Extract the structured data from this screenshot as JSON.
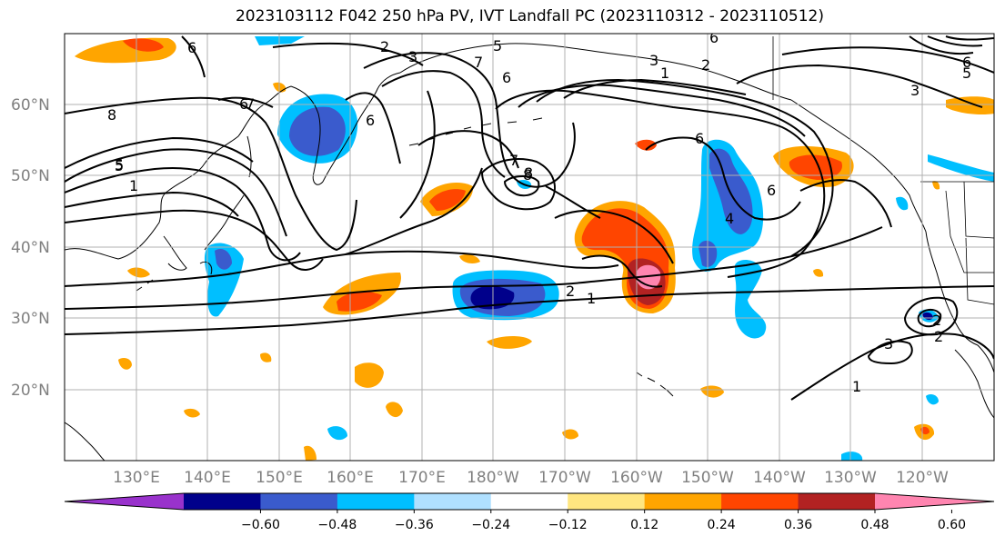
{
  "title": "2023103112 F042 250 hPa PV, IVT Landfall PC (2023110312 - 2023110512)",
  "axes": {
    "lat_labels": [
      "60°N",
      "50°N",
      "40°N",
      "30°N",
      "20°N"
    ],
    "lon_labels": [
      "130°E",
      "140°E",
      "150°E",
      "160°E",
      "170°E",
      "180°W",
      "170°W",
      "160°W",
      "150°W",
      "140°W",
      "130°W",
      "120°W"
    ],
    "grid": true
  },
  "colorbar": {
    "ticks": [
      "−0.60",
      "−0.48",
      "−0.36",
      "−0.24",
      "−0.12",
      "0.12",
      "0.24",
      "0.36",
      "0.48",
      "0.60"
    ],
    "colors": [
      "#9932cc",
      "#00008b",
      "#3a5bcd",
      "#00bfff",
      "#b0e0ff",
      "#ffffff",
      "#ffe680",
      "#ffa500",
      "#ff4500",
      "#b22222",
      "#ff85b0"
    ]
  },
  "contour_labels": [
    "6",
    "2",
    "3",
    "5",
    "7",
    "6",
    "6",
    "2",
    "3",
    "1",
    "3",
    "6",
    "5",
    "6",
    "8",
    "7",
    "6",
    "5",
    "8",
    "5",
    "1",
    "6",
    "7",
    "8",
    "6",
    "4",
    "2",
    "1",
    "3",
    "2",
    "1",
    "2"
  ]
}
